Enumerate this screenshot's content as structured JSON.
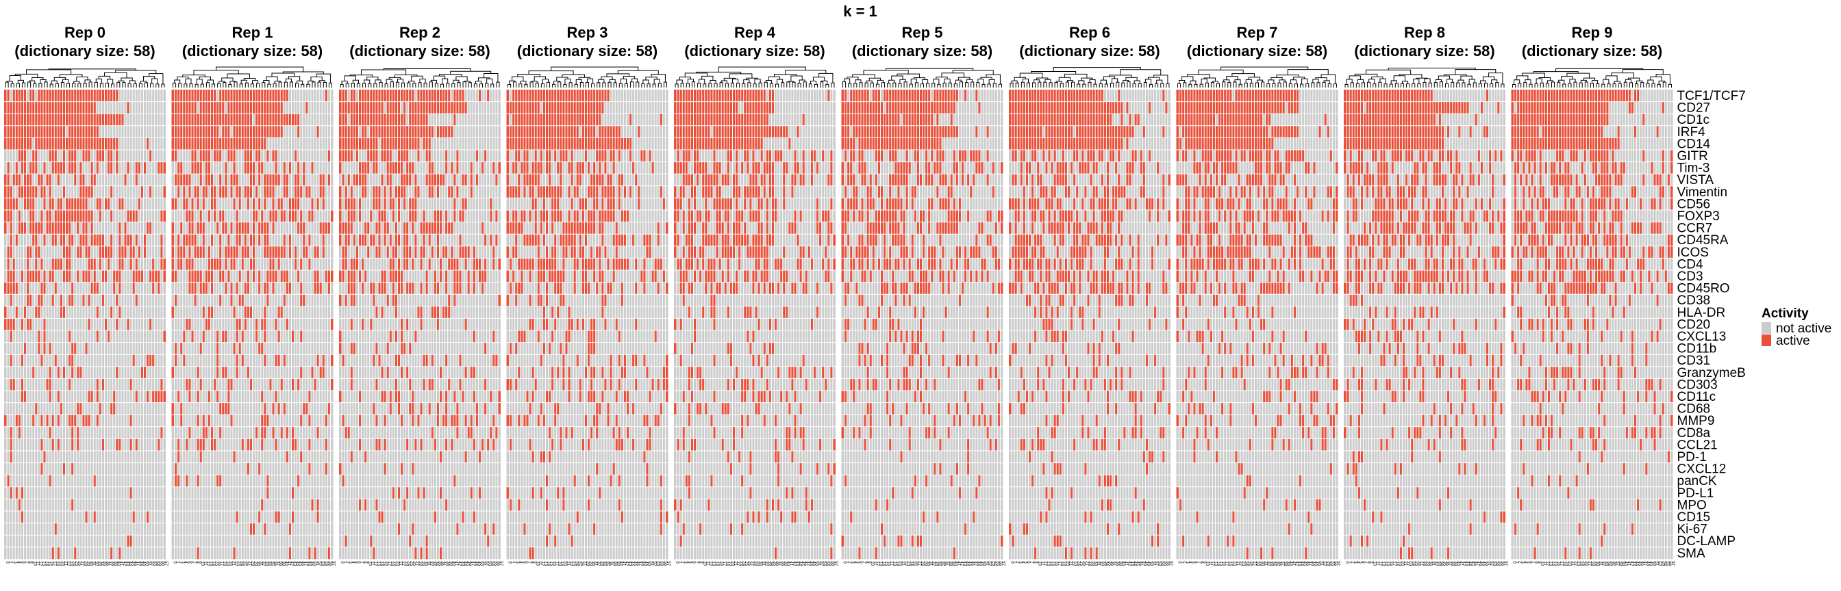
{
  "chart_data": {
    "type": "heatmap",
    "title": "k = 1",
    "panels": [
      {
        "title": "Rep 0",
        "subtitle": "(dictionary size: 58)"
      },
      {
        "title": "Rep 1",
        "subtitle": "(dictionary size: 58)"
      },
      {
        "title": "Rep 2",
        "subtitle": "(dictionary size: 58)"
      },
      {
        "title": "Rep 3",
        "subtitle": "(dictionary size: 58)"
      },
      {
        "title": "Rep 4",
        "subtitle": "(dictionary size: 58)"
      },
      {
        "title": "Rep 5",
        "subtitle": "(dictionary size: 58)"
      },
      {
        "title": "Rep 6",
        "subtitle": "(dictionary size: 58)"
      },
      {
        "title": "Rep 7",
        "subtitle": "(dictionary size: 58)"
      },
      {
        "title": "Rep 8",
        "subtitle": "(dictionary size: 58)"
      },
      {
        "title": "Rep 9",
        "subtitle": "(dictionary size: 58)"
      }
    ],
    "columns_per_panel": 58,
    "rows": [
      "TCF1/TCF7",
      "CD27",
      "CD1c",
      "IRF4",
      "CD14",
      "GITR",
      "Tim-3",
      "VISTA",
      "Vimentin",
      "CD56",
      "FOXP3",
      "CCR7",
      "CD45RA",
      "ICOS",
      "CD4",
      "CD3",
      "CD45RO",
      "CD38",
      "HLA-DR",
      "CD20",
      "CXCL13",
      "CD11b",
      "CD31",
      "GranzymeB",
      "CD303",
      "CD11c",
      "CD68",
      "MMP9",
      "CD8a",
      "CCL21",
      "PD-1",
      "CXCL12",
      "panCK",
      "PD-L1",
      "MPO",
      "CD15",
      "Ki-67",
      "DC-LAMP",
      "SMA"
    ],
    "row_dendrogram": false,
    "column_dendrogram": true,
    "legend": {
      "title": "Activity",
      "position": "right",
      "entries": [
        {
          "label": "not active",
          "color": "#cccccc"
        },
        {
          "label": "active",
          "color": "#e8503a"
        }
      ]
    }
  }
}
